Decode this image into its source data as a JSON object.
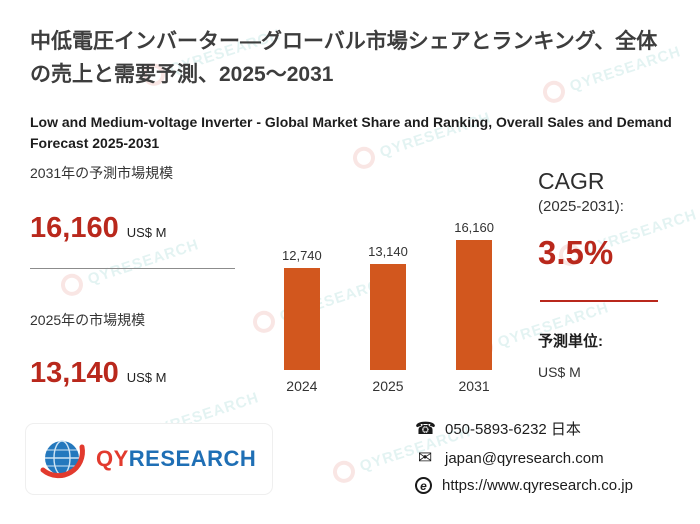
{
  "colors": {
    "accent_red": "#b9281c",
    "bar_orange": "#d2571e",
    "logo_blue": "#1f6fb5",
    "logo_red": "#e23a2e"
  },
  "header": {
    "title_ja": "中低電圧インバーター—グローバル市場シェアとランキング、全体の売上と需要予測、2025～2031",
    "title_en": "Low and Medium-voltage Inverter - Global Market Share and Ranking, Overall Sales and Demand Forecast 2025-2031"
  },
  "stats": {
    "forecast": {
      "label": "2031年の予測市場規模",
      "value": "16,160",
      "unit": "US$ M"
    },
    "current": {
      "label": "2025年の市場規模",
      "value": "13,140",
      "unit": "US$ M"
    }
  },
  "cagr": {
    "title": "CAGR",
    "period": "(2025-2031):",
    "value": "3.5%"
  },
  "forecast_unit": {
    "label": "予測単位:",
    "value": "US$ M"
  },
  "chart_data": {
    "type": "bar",
    "categories": [
      "2024",
      "2025",
      "2031"
    ],
    "values": [
      12740,
      13140,
      16160
    ],
    "data_labels": [
      "12,740",
      "13,140",
      "16,160"
    ],
    "title": "",
    "xlabel": "",
    "ylabel": "",
    "ylim": [
      0,
      16160
    ],
    "grid": false,
    "legend": "none",
    "bar_color": "#d2571e"
  },
  "logo": {
    "qy": "QY",
    "research": "RESEARCH"
  },
  "watermark": {
    "text": "QYRESEARCH"
  },
  "contact": {
    "phone": "050-5893-6232 日本",
    "email": "japan@qyresearch.com",
    "website": "https://www.qyresearch.co.jp"
  }
}
